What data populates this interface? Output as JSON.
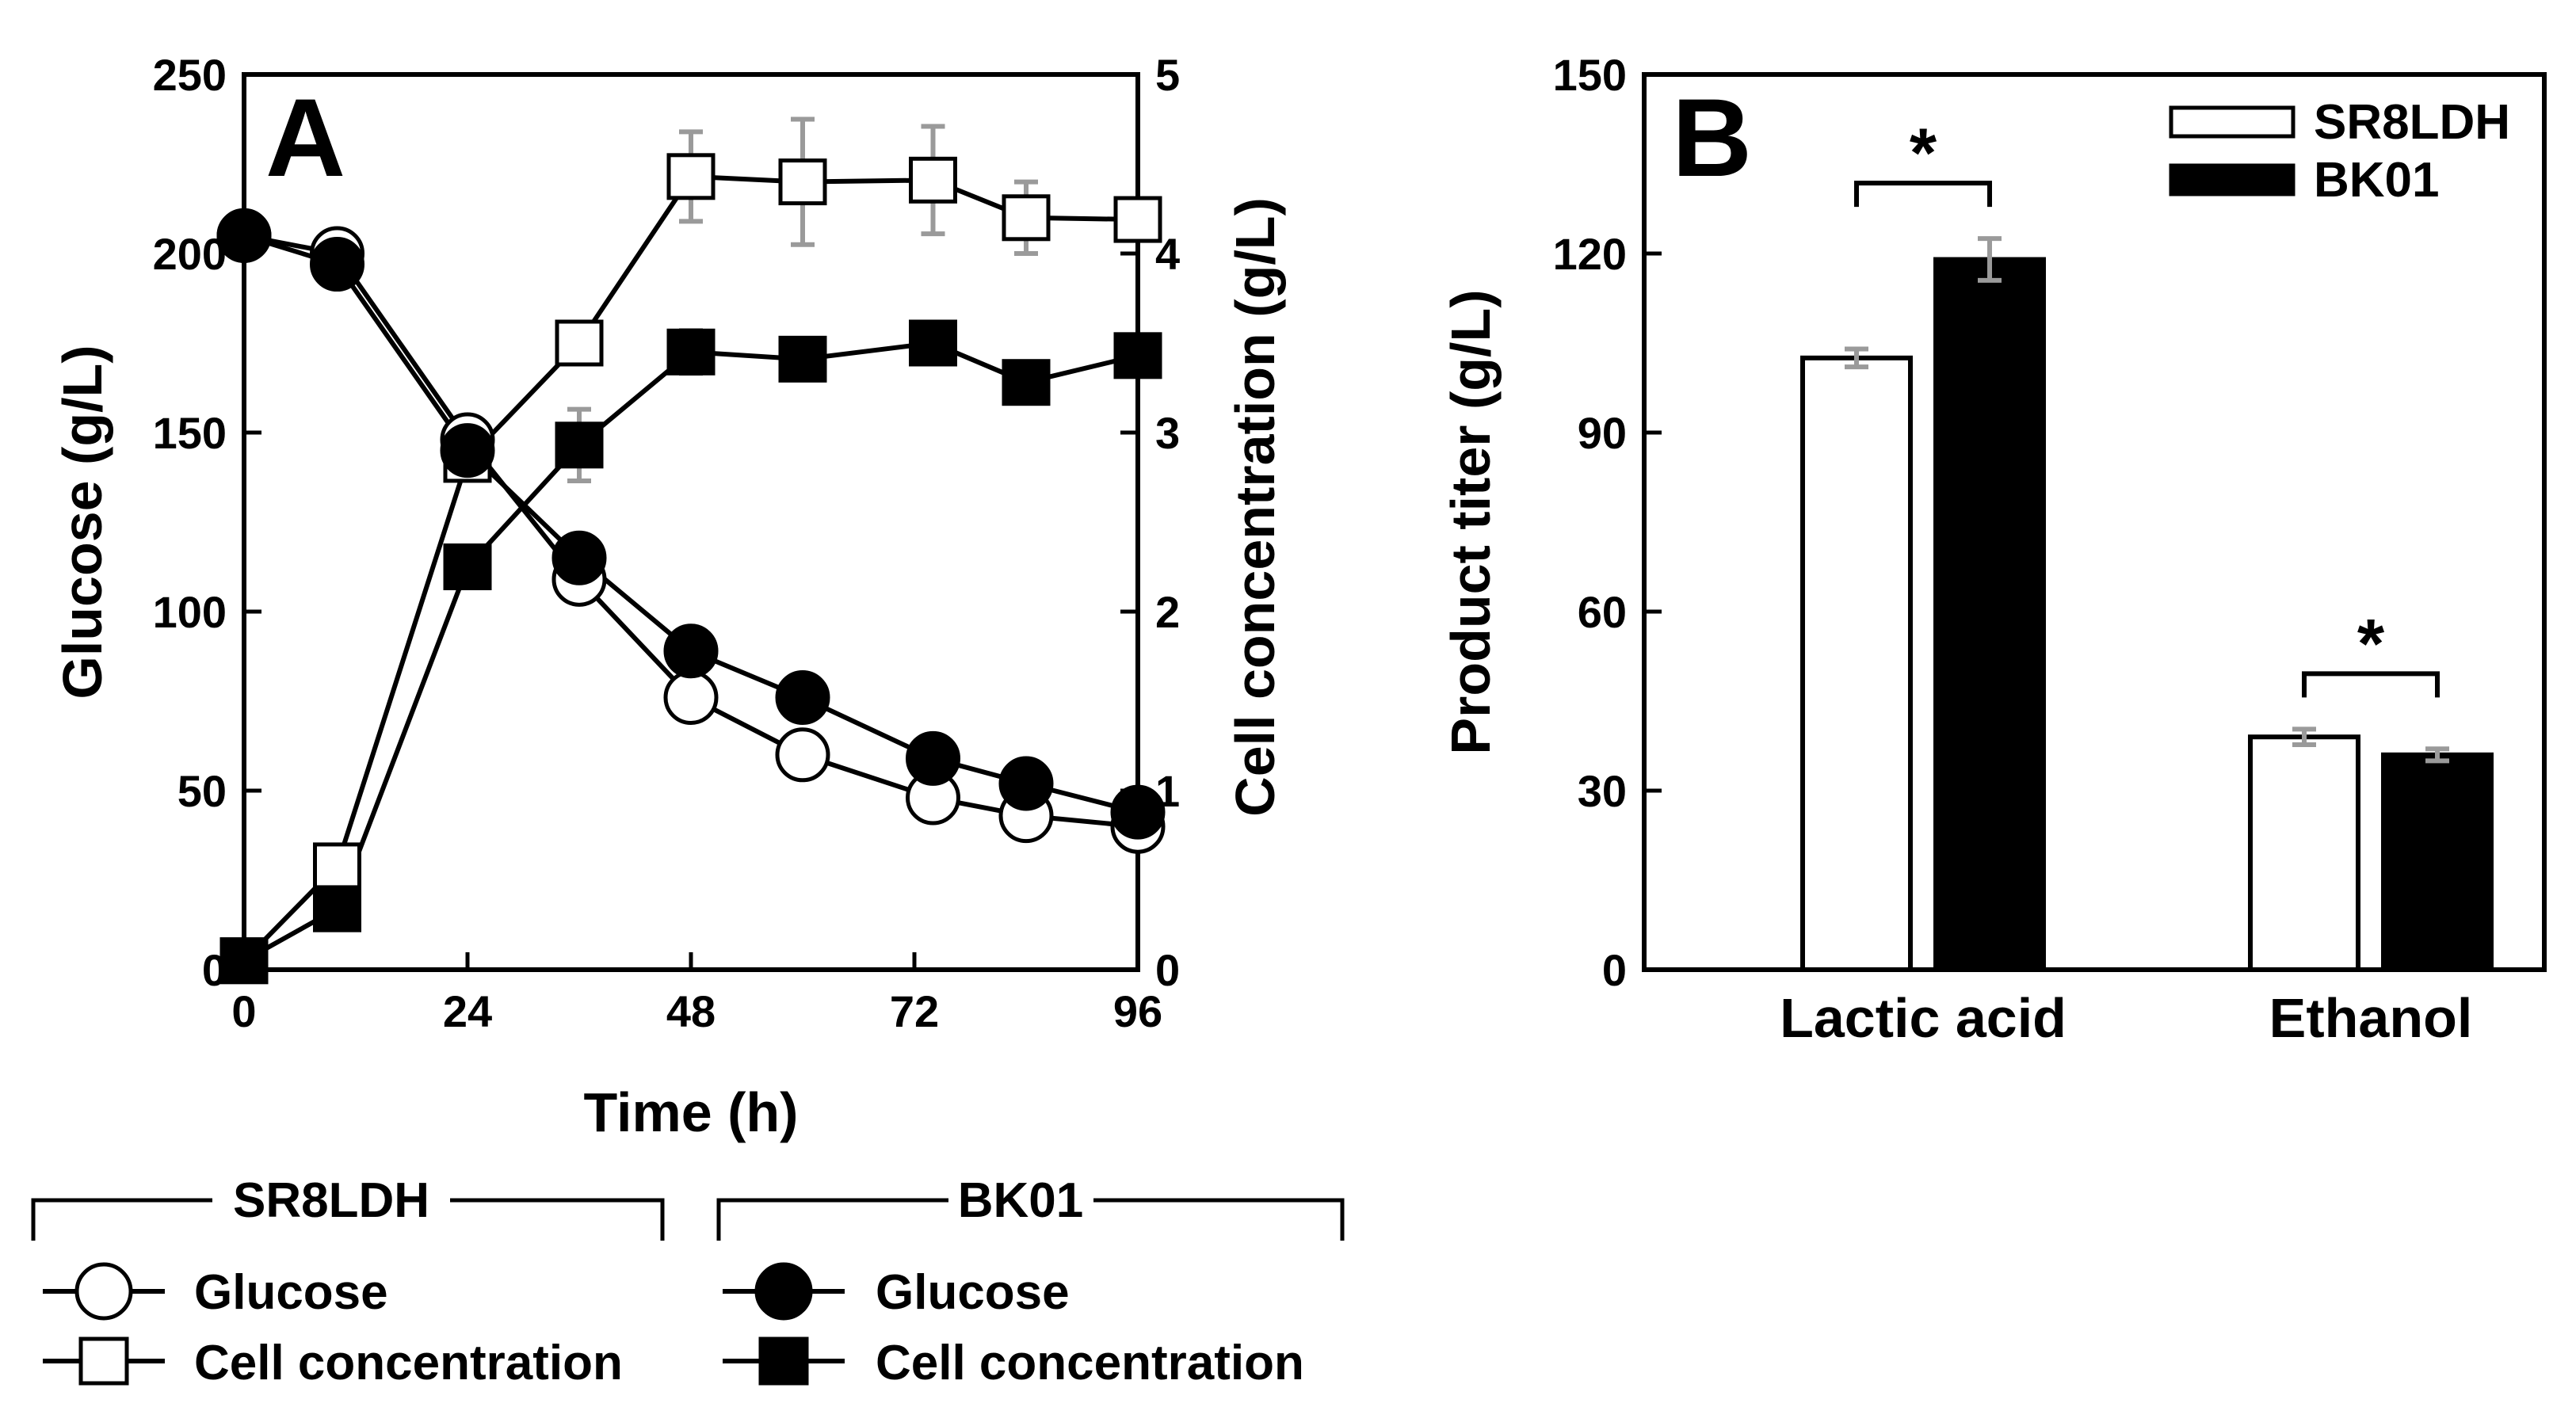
{
  "chart_data": [
    {
      "panel": "A",
      "type": "line",
      "xlabel": "Time (h)",
      "ylabel": "Glucose (g/L)",
      "y2label": "Cell concentration (g/L)",
      "xlim": [
        0,
        96
      ],
      "ylim": [
        0,
        250
      ],
      "y2lim": [
        0,
        5
      ],
      "xticks": [
        "0",
        "24",
        "48",
        "72",
        "96"
      ],
      "yticks": [
        "0",
        "50",
        "100",
        "150",
        "200",
        "250"
      ],
      "y2ticks": [
        "0",
        "1",
        "2",
        "3",
        "4",
        "5"
      ],
      "series": [
        {
          "name": "Glucose",
          "strain": "SR8LDH",
          "axis": "left",
          "marker": "circle",
          "fill": "#ffffff",
          "x": [
            0,
            10,
            24,
            36,
            48,
            60,
            74,
            84,
            96
          ],
          "y": [
            205,
            200,
            148,
            109,
            76,
            60,
            48,
            43,
            40
          ]
        },
        {
          "name": "Cell concentration",
          "strain": "SR8LDH",
          "axis": "right",
          "marker": "square",
          "fill": "#ffffff",
          "x": [
            0,
            10,
            24,
            36,
            48,
            60,
            74,
            84,
            96
          ],
          "y": [
            0.05,
            0.58,
            2.85,
            3.5,
            4.43,
            4.4,
            4.41,
            4.2,
            4.19
          ],
          "err": [
            0,
            0,
            0.1,
            0,
            0.25,
            0.35,
            0.3,
            0.2,
            0
          ]
        },
        {
          "name": "Glucose",
          "strain": "BK01",
          "axis": "left",
          "marker": "circle",
          "fill": "#000000",
          "x": [
            0,
            10,
            24,
            36,
            48,
            60,
            74,
            84,
            96
          ],
          "y": [
            205,
            197,
            145,
            115,
            89,
            76,
            59,
            52,
            44
          ]
        },
        {
          "name": "Cell concentration",
          "strain": "BK01",
          "axis": "right",
          "marker": "square",
          "fill": "#000000",
          "x": [
            0,
            10,
            24,
            36,
            48,
            60,
            74,
            84,
            96
          ],
          "y": [
            0.05,
            0.34,
            2.25,
            2.93,
            3.45,
            3.41,
            3.5,
            3.28,
            3.43
          ],
          "err": [
            0,
            0,
            0,
            0.2,
            0.12,
            0.1,
            0,
            0,
            0
          ]
        }
      ],
      "legend": {
        "groups": [
          {
            "title": "SR8LDH",
            "items": [
              "Glucose",
              "Cell concentration"
            ]
          },
          {
            "title": "BK01",
            "items": [
              "Glucose",
              "Cell concentration"
            ]
          }
        ],
        "placement": "bottom"
      }
    },
    {
      "panel": "B",
      "type": "bar",
      "xlabel": "",
      "ylabel": "Product titer (g/L)",
      "categories": [
        "Lactic acid",
        "Ethanol"
      ],
      "ylim": [
        0,
        150
      ],
      "yticks": [
        "0",
        "30",
        "60",
        "90",
        "120",
        "150"
      ],
      "series": [
        {
          "name": "SR8LDH",
          "fill": "#ffffff",
          "values": [
            102.5,
            39
          ],
          "err": [
            1.5,
            1.3
          ]
        },
        {
          "name": "BK01",
          "fill": "#000000",
          "values": [
            119,
            36
          ],
          "err": [
            3.5,
            1
          ]
        }
      ],
      "significance": [
        "*",
        "*"
      ],
      "legend_placement": "top-right"
    }
  ]
}
